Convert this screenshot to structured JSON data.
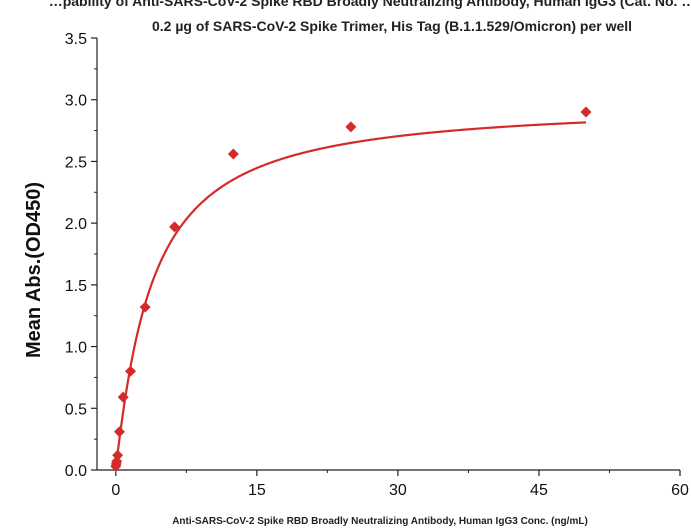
{
  "chart_data": {
    "type": "scatter",
    "title_partial": "…pability of Anti-SARS-CoV-2 Spike RBD Broadly Neutralizing Antibody, Human IgG3 (Cat. No. …",
    "title": "0.2 µg of SARS-CoV-2 Spike Trimer, His Tag (B.1.1.529/Omicron)  per well",
    "xlabel": "Anti-SARS-CoV-2 Spike RBD Broadly Neutralizing Antibody, Human IgG3 Conc. (ng/mL)",
    "ylabel": "Mean Abs.(OD450)",
    "xlim": [
      -2,
      60
    ],
    "ylim": [
      0,
      3.5
    ],
    "x_ticks": [
      "0",
      "15",
      "30",
      "45",
      "60"
    ],
    "x_tick_values": [
      0,
      15,
      30,
      45,
      60
    ],
    "y_ticks": [
      "0.0",
      "0.5",
      "1.0",
      "1.5",
      "2.0",
      "2.5",
      "3.0",
      "3.5"
    ],
    "y_tick_values": [
      0,
      0.5,
      1.0,
      1.5,
      2.0,
      2.5,
      3.0,
      3.5
    ],
    "series": [
      {
        "color": "#d42a2a",
        "marker": "diamond",
        "x": [
          0,
          0.049,
          0.098,
          0.195,
          0.39,
          0.781,
          1.563,
          3.125,
          6.25,
          12.5,
          25,
          50
        ],
        "y": [
          0.03,
          0.05,
          0.07,
          0.12,
          0.31,
          0.59,
          0.8,
          1.32,
          1.97,
          2.56,
          2.78,
          2.9
        ]
      }
    ],
    "fit_curve": {
      "model": "4PL",
      "color": "#d42a2a",
      "a": 0.03,
      "d": 2.98,
      "c": 3.8,
      "b": 1.1
    },
    "grid": false,
    "legend": false
  }
}
